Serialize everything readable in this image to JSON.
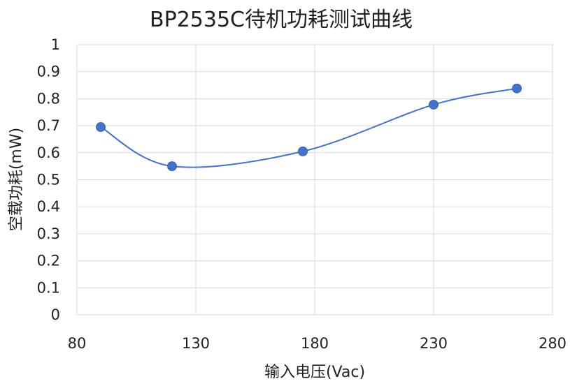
{
  "chart_data": {
    "type": "scatter",
    "title": "BP2535C待机功耗测试曲线",
    "xlabel": "输入电压(Vac)",
    "ylabel": "空载功耗(mW)",
    "xlim": [
      80,
      280
    ],
    "ylim": [
      0,
      1
    ],
    "xticks": [
      80,
      130,
      180,
      230,
      280
    ],
    "yticks": [
      0,
      0.1,
      0.2,
      0.3,
      0.4,
      0.5,
      0.6,
      0.7,
      0.8,
      0.9,
      1
    ],
    "grid": true,
    "line": "smooth",
    "color": "#4472c4",
    "series": [
      {
        "x": [
          90,
          120,
          175,
          230,
          265
        ],
        "y": [
          0.695,
          0.55,
          0.605,
          0.778,
          0.838
        ]
      }
    ]
  }
}
